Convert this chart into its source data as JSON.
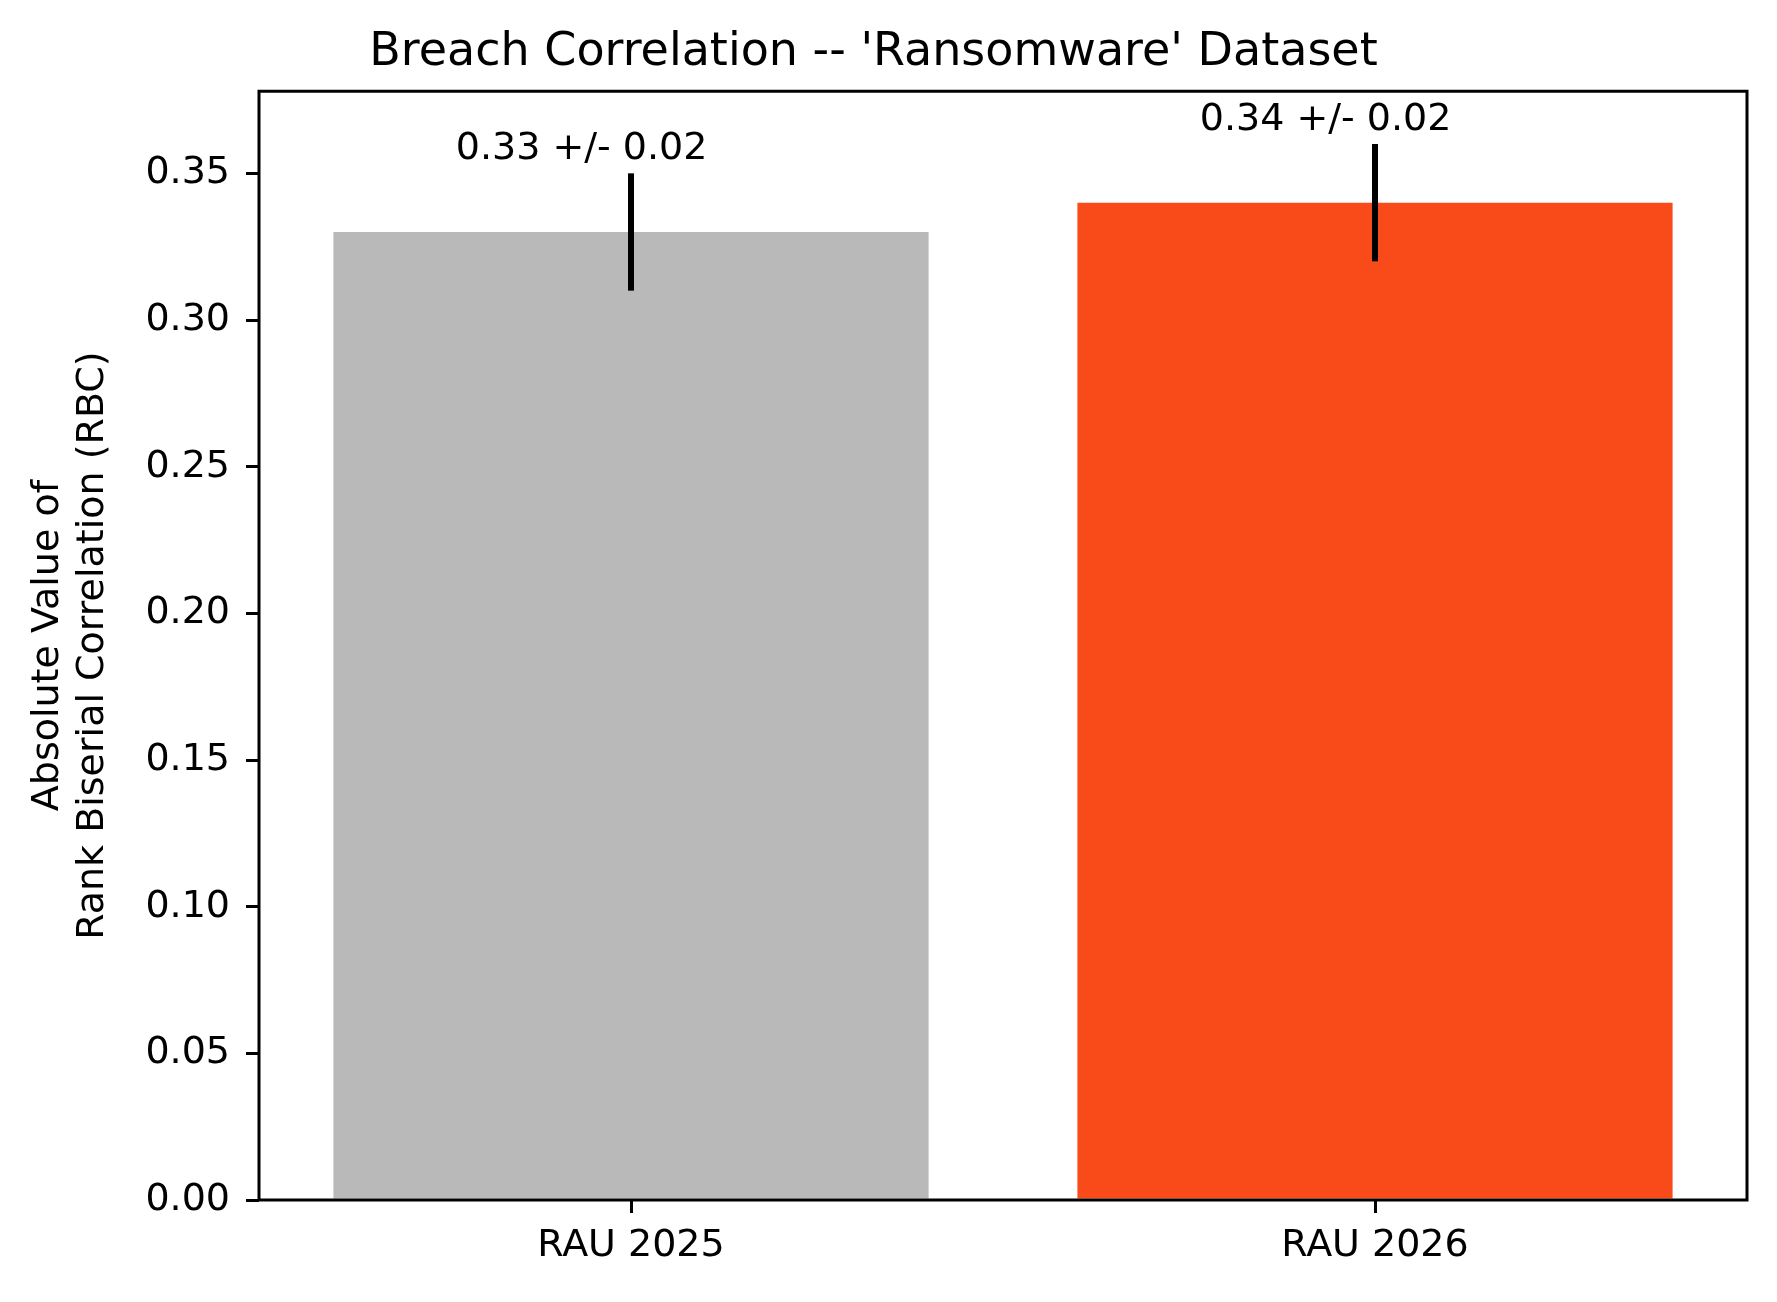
{
  "chart_data": {
    "type": "bar",
    "title": "Breach Correlation -- 'Ransomware' Dataset",
    "ylabel": "Absolute Value of\nRank Biserial Correlation (RBC)",
    "categories": [
      "RAU 2025",
      "RAU 2026"
    ],
    "values": [
      0.33,
      0.34
    ],
    "colors": [
      "#b9b9b9",
      "#f94b1a"
    ],
    "errors": [
      0.02,
      0.02
    ],
    "value_labels": [
      "0.33 +/- 0.02",
      "0.34 +/- 0.02"
    ],
    "ylim": [
      0,
      0.378
    ],
    "yticks": [
      {
        "value": 0,
        "label": "0.00"
      },
      {
        "value": 0.05,
        "label": "0.05"
      },
      {
        "value": 0.1,
        "label": "0.10"
      },
      {
        "value": 0.15,
        "label": "0.15"
      },
      {
        "value": 0.2,
        "label": "0.20"
      },
      {
        "value": 0.25,
        "label": "0.25"
      },
      {
        "value": 0.3,
        "label": "0.30"
      },
      {
        "value": 0.35,
        "label": "0.35"
      }
    ],
    "grid": false
  }
}
